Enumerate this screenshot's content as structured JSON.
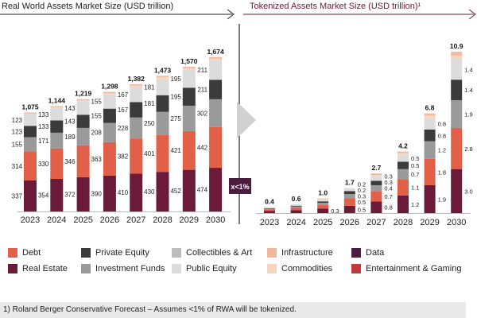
{
  "colors": {
    "real_estate": "#6b1a3a",
    "debt": "#e25f48",
    "investment_funds": "#9a9a9a",
    "private_equity": "#3b3b3b",
    "public_equity": "#dcdcdc",
    "commodities": "#f7d4bd",
    "infrastructure": "#f0b89c",
    "entertainment": "#c23a3a",
    "collectibles": "#bdbdbd",
    "data": "#4a1c3e",
    "left_header_line": "#222222",
    "right_header_line": "#6b1a3a",
    "divider": "#222222",
    "arrow": "#d0d0d0",
    "badge_bg": "#4a1c3e",
    "badge_text": "#ffffff"
  },
  "chart_data": [
    {
      "type": "bar",
      "stacked": true,
      "title": "Real World Assets Market Size (USD trillion)",
      "categories": [
        "2023",
        "2024",
        "2025",
        "2026",
        "2027",
        "2028",
        "2029",
        "2030"
      ],
      "series": [
        {
          "name": "Real Estate",
          "color_key": "real_estate",
          "values": [
            337,
            354,
            372,
            390,
            410,
            430,
            452,
            474
          ],
          "labels": [
            "337",
            "354",
            "372",
            "390",
            "410",
            "430",
            "452",
            "474"
          ]
        },
        {
          "name": "Debt",
          "color_key": "debt",
          "values": [
            314,
            330,
            346,
            363,
            382,
            401,
            421,
            442
          ],
          "labels": [
            "314",
            "330",
            "346",
            "363",
            "382",
            "401",
            "421",
            "442"
          ]
        },
        {
          "name": "Investment Funds",
          "color_key": "investment_funds",
          "values": [
            155,
            171,
            189,
            208,
            228,
            250,
            275,
            302
          ],
          "labels": [
            "155",
            "171",
            "189",
            "208",
            "228",
            "250",
            "275",
            "302"
          ]
        },
        {
          "name": "Private Equity",
          "color_key": "private_equity",
          "values": [
            123,
            133,
            143,
            155,
            167,
            181,
            195,
            211
          ],
          "labels": [
            "123",
            "133",
            "143",
            "155",
            "167",
            "181",
            "195",
            "211"
          ]
        },
        {
          "name": "Public Equity",
          "color_key": "public_equity",
          "values": [
            123,
            133,
            143,
            155,
            167,
            181,
            195,
            211
          ],
          "labels": [
            "123",
            "133",
            "143",
            "155",
            "167",
            "181",
            "195",
            "211"
          ]
        },
        {
          "name": "Commodities",
          "color_key": "commodities",
          "values": [
            12,
            12,
            13,
            14,
            15,
            16,
            17,
            18
          ],
          "labels": null
        },
        {
          "name": "Infrastructure",
          "color_key": "infrastructure",
          "values": [
            11,
            11,
            13,
            13,
            13,
            14,
            15,
            16
          ],
          "labels": null
        }
      ],
      "totals": [
        "1,075",
        "1,144",
        "1,219",
        "1,298",
        "1,382",
        "1,473",
        "1,570",
        "1,674"
      ],
      "ylim": [
        0,
        1674
      ]
    },
    {
      "type": "bar",
      "stacked": true,
      "title": "Tokenized Assets Market Size (USD trillion)¹",
      "categories": [
        "2023",
        "2024",
        "2025",
        "2026",
        "2027",
        "2028",
        "2029",
        "2030"
      ],
      "series": [
        {
          "name": "Real Estate",
          "color_key": "real_estate",
          "values": [
            0.15,
            0.2,
            0.3,
            0.5,
            0.8,
            1.2,
            1.9,
            3.0
          ],
          "labels": [
            null,
            null,
            "0.3",
            "0.5",
            "0.8",
            "1.2",
            "1.9",
            "3.0"
          ]
        },
        {
          "name": "Debt",
          "color_key": "debt",
          "values": [
            0.1,
            0.15,
            0.25,
            0.5,
            0.7,
            1.1,
            1.8,
            2.8
          ],
          "labels": [
            null,
            null,
            null,
            "0.5",
            "0.7",
            "1.1",
            "1.8",
            "2.8"
          ]
        },
        {
          "name": "Investment Funds",
          "color_key": "investment_funds",
          "values": [
            0.05,
            0.1,
            0.15,
            0.3,
            0.4,
            0.7,
            1.2,
            1.9
          ],
          "labels": [
            null,
            null,
            null,
            "0.3",
            "0.4",
            "0.7",
            "1.2",
            "1.9"
          ]
        },
        {
          "name": "Private Equity",
          "color_key": "private_equity",
          "values": [
            0.03,
            0.05,
            0.1,
            0.2,
            0.3,
            0.5,
            0.8,
            1.4
          ],
          "labels": [
            null,
            null,
            null,
            "0.2",
            "0.3",
            "0.5",
            "0.8",
            "1.4"
          ]
        },
        {
          "name": "Public Equity",
          "color_key": "public_equity",
          "values": [
            0.04,
            0.06,
            0.12,
            0.2,
            0.3,
            0.5,
            0.8,
            1.4
          ],
          "labels": [
            null,
            null,
            null,
            "0.2",
            "0.3",
            "0.5",
            "0.8",
            "1.4"
          ]
        },
        {
          "name": "Commodities",
          "color_key": "commodities",
          "values": [
            0.02,
            0.02,
            0.04,
            0.0,
            0.1,
            0.1,
            0.15,
            0.25
          ],
          "labels": null
        },
        {
          "name": "Infrastructure",
          "color_key": "infrastructure",
          "values": [
            0.01,
            0.02,
            0.04,
            0.0,
            0.1,
            0.1,
            0.15,
            0.25
          ],
          "labels": null
        }
      ],
      "totals": [
        "0.4",
        "0.6",
        "1.0",
        "1.7",
        "2.7",
        "4.2",
        "6.8",
        "10.9"
      ],
      "ylim": [
        0,
        10.9
      ]
    }
  ],
  "badge": {
    "text": "x<1%"
  },
  "legend": [
    {
      "label": "Debt",
      "color_key": "debt"
    },
    {
      "label": "Private Equity",
      "color_key": "private_equity"
    },
    {
      "label": "Collectibles & Art",
      "color_key": "collectibles"
    },
    {
      "label": "Infrastructure",
      "color_key": "infrastructure"
    },
    {
      "label": "Data",
      "color_key": "data"
    },
    {
      "label": "Real Estate",
      "color_key": "real_estate"
    },
    {
      "label": "Investment Funds",
      "color_key": "investment_funds"
    },
    {
      "label": "Public Equity",
      "color_key": "public_equity"
    },
    {
      "label": "Commodities",
      "color_key": "commodities"
    },
    {
      "label": "Entertainment & Gaming",
      "color_key": "entertainment"
    }
  ],
  "footnote": "1) Roland Berger Conservative Forecast – Assumes <1% of RWA will be tokenized."
}
